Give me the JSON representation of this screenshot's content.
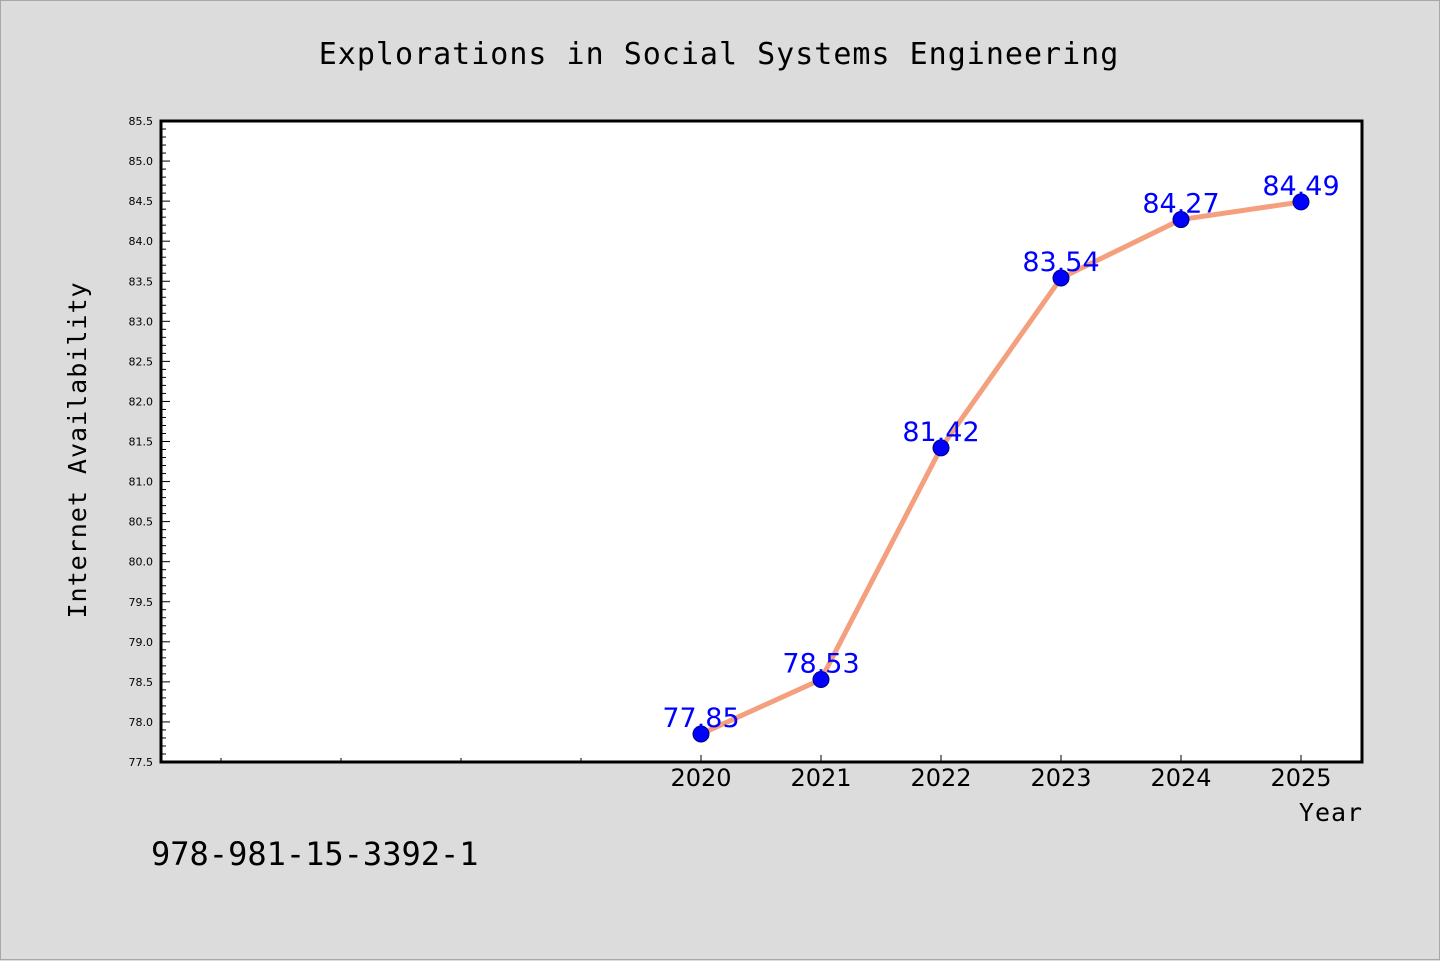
{
  "chart_data": {
    "type": "line",
    "title": "Explorations in Social Systems Engineering",
    "xlabel": "Year",
    "ylabel": "Internet Availability",
    "x": [
      "2020",
      "2021",
      "2022",
      "2023",
      "2024",
      "2025"
    ],
    "values": [
      77.85,
      78.53,
      81.42,
      83.54,
      84.27,
      84.49
    ],
    "data_labels": [
      "77.85",
      "78.53",
      "81.42",
      "83.54",
      "84.27",
      "84.49"
    ],
    "ylim": [
      77.5,
      85.5
    ],
    "y_ticks": [
      "77.5",
      "78.0",
      "78.5",
      "79.0",
      "79.5",
      "80.0",
      "80.5",
      "81.0",
      "81.5",
      "82.0",
      "82.5",
      "83.0",
      "83.5",
      "84.0",
      "84.5",
      "85.0",
      "85.5"
    ],
    "y_minor_step": 0.1,
    "x_extra_ticks": 4,
    "grid": false,
    "legend": "none",
    "line_color": "#f4a07e",
    "marker_color": "#0000ff",
    "label_color": "#0000ff",
    "plot_background": "#ffffff",
    "figure_background": "#dcdcdc"
  },
  "footer": {
    "code": "978-981-15-3392-1"
  }
}
